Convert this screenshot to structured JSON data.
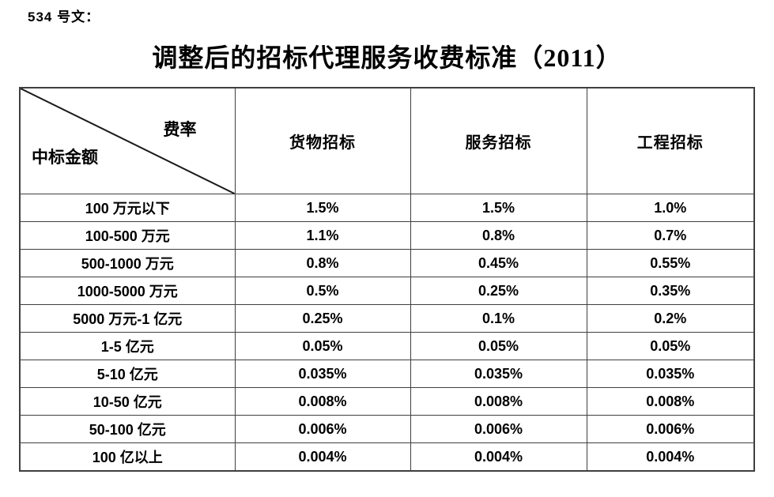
{
  "doc_label": "534 号文：",
  "title": "调整后的招标代理服务收费标准（2011）",
  "table": {
    "corner": {
      "rate_label": "费率",
      "amount_label": "中标金额"
    },
    "columns": [
      "货物招标",
      "服务招标",
      "工程招标"
    ],
    "rows": [
      {
        "amount": "100 万元以下",
        "values": [
          "1.5%",
          "1.5%",
          "1.0%"
        ]
      },
      {
        "amount": "100-500 万元",
        "values": [
          "1.1%",
          "0.8%",
          "0.7%"
        ]
      },
      {
        "amount": "500-1000 万元",
        "values": [
          "0.8%",
          "0.45%",
          "0.55%"
        ]
      },
      {
        "amount": "1000-5000 万元",
        "values": [
          "0.5%",
          "0.25%",
          "0.35%"
        ]
      },
      {
        "amount": "5000 万元-1 亿元",
        "values": [
          "0.25%",
          "0.1%",
          "0.2%"
        ]
      },
      {
        "amount": "1-5 亿元",
        "values": [
          "0.05%",
          "0.05%",
          "0.05%"
        ]
      },
      {
        "amount": "5-10 亿元",
        "values": [
          "0.035%",
          "0.035%",
          "0.035%"
        ]
      },
      {
        "amount": "10-50 亿元",
        "values": [
          "0.008%",
          "0.008%",
          "0.008%"
        ]
      },
      {
        "amount": "50-100 亿元",
        "values": [
          "0.006%",
          "0.006%",
          "0.006%"
        ]
      },
      {
        "amount": "100 亿以上",
        "values": [
          "0.004%",
          "0.004%",
          "0.004%"
        ]
      }
    ]
  },
  "colors": {
    "text": "#000000",
    "border": "#3f3f3f",
    "background": "#ffffff"
  }
}
